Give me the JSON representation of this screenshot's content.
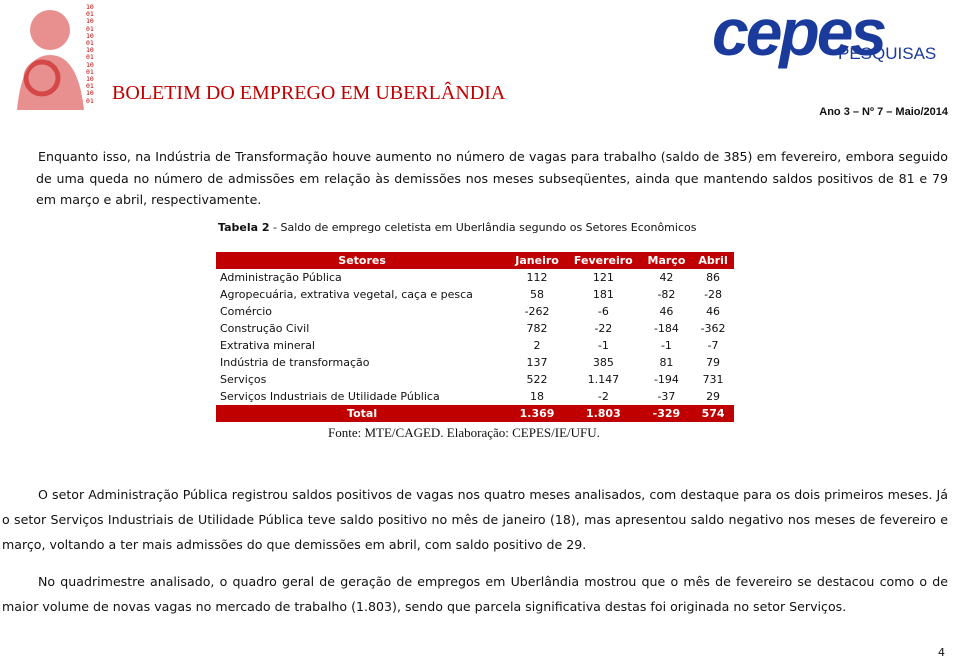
{
  "header": {
    "logo_digits": [
      "10",
      "01",
      "10",
      "01",
      "10",
      "01",
      "10",
      "01",
      "10",
      "01",
      "10",
      "01",
      "10",
      "01"
    ],
    "title": "BOLETIM DO EMPREGO EM UBERLÂNDIA",
    "brand": "cepes",
    "brand_sub": "PESQUISAS",
    "issue": "Ano 3 – Nº 7 – Maio/2014"
  },
  "paragraphs_top": [
    "Enquanto isso, na Indústria de Transformação houve aumento no número de vagas para trabalho (saldo de 385) em fevereiro, embora seguido de uma queda no número de admissões em relação às demissões nos meses subseqüentes, ainda que mantendo saldos positivos de 81 e 79 em março e abril, respectivamente."
  ],
  "table": {
    "caption_label": "Tabela 2",
    "caption": " - Saldo de emprego celetista em Uberlândia segundo os Setores Econômicos",
    "header": [
      "Setores",
      "Janeiro",
      "Fevereiro",
      "Março",
      "Abril"
    ],
    "rows": [
      [
        "Administração Pública",
        "112",
        "121",
        "42",
        "86"
      ],
      [
        "Agropecuária, extrativa vegetal, caça e pesca",
        "58",
        "181",
        "-82",
        "-28"
      ],
      [
        "Comércio",
        "-262",
        "-6",
        "46",
        "46"
      ],
      [
        "Construção Civil",
        "782",
        "-22",
        "-184",
        "-362"
      ],
      [
        "Extrativa mineral",
        "2",
        "-1",
        "-1",
        "-7"
      ],
      [
        "Indústria de transformação",
        "137",
        "385",
        "81",
        "79"
      ],
      [
        "Serviços",
        "522",
        "1.147",
        "-194",
        "731"
      ],
      [
        "Serviços Industriais de Utilidade Pública",
        "18",
        "-2",
        "-37",
        "29"
      ]
    ],
    "total": [
      "Total",
      "1.369",
      "1.803",
      "-329",
      "574"
    ],
    "source": "Fonte: MTE/CAGED. Elaboração: CEPES/IE/UFU."
  },
  "paragraphs_bottom": [
    "O setor Administração Pública registrou saldos positivos de vagas nos quatro meses analisados, com destaque para os dois primeiros meses. Já o setor Serviços Industriais de Utilidade Pública teve saldo positivo no mês de janeiro (18), mas apresentou saldo negativo nos meses de fevereiro e março, voltando a ter mais admissões do que demissões em abril, com saldo positivo de 29.",
    "No quadrimestre analisado, o quadro geral de geração de empregos em Uberlândia mostrou que o mês de fevereiro se destacou como o de maior volume de novas vagas no mercado de trabalho (1.803), sendo que parcela significativa destas foi originada no setor Serviços."
  ],
  "page_number": "4"
}
